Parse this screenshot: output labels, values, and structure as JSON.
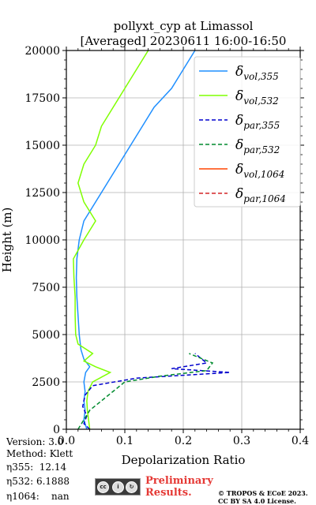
{
  "footer": {
    "version_line": "Version: 3.0",
    "method_line": "Method: Klett",
    "eta355_label": "η355:",
    "eta355_value": "12.14",
    "eta532_label": "η532:",
    "eta532_value": "6.1888",
    "eta1064_label": "η1064:",
    "eta1064_value": "nan",
    "badge_text": "BY SA",
    "preliminary_line1": "Preliminary",
    "preliminary_line2": "Results.",
    "copyright_line1": "© TROPOS & ECoE 2023.",
    "copyright_line2": "CC BY SA 4.0 License."
  },
  "chart_data": {
    "type": "line",
    "title": "pollyxt_cyp at Limassol",
    "subtitle": "[Averaged] 20230611 16:00-16:50",
    "xlabel": "Depolarization Ratio",
    "ylabel": "Height (m)",
    "xlim": [
      0.0,
      0.4
    ],
    "ylim": [
      0,
      20000
    ],
    "xticks": [
      "0.0",
      "0.1",
      "0.2",
      "0.3",
      "0.4"
    ],
    "yticks": [
      "0",
      "2500",
      "5000",
      "7500",
      "10000",
      "12500",
      "15000",
      "17500",
      "20000"
    ],
    "grid": true,
    "legend_position": "top-right",
    "series": [
      {
        "name": "δvol,355",
        "color": "#1f8fff",
        "dash": "solid",
        "points": [
          [
            0.035,
            0
          ],
          [
            0.03,
            500
          ],
          [
            0.032,
            1000
          ],
          [
            0.03,
            1500
          ],
          [
            0.032,
            2000
          ],
          [
            0.03,
            2500
          ],
          [
            0.033,
            3000
          ],
          [
            0.04,
            3300
          ],
          [
            0.03,
            3700
          ],
          [
            0.025,
            4200
          ],
          [
            0.022,
            5000
          ],
          [
            0.02,
            6000
          ],
          [
            0.018,
            7000
          ],
          [
            0.017,
            8000
          ],
          [
            0.018,
            9000
          ],
          [
            0.022,
            10000
          ],
          [
            0.03,
            11000
          ],
          [
            0.05,
            12000
          ],
          [
            0.07,
            13000
          ],
          [
            0.09,
            14000
          ],
          [
            0.11,
            15000
          ],
          [
            0.13,
            16000
          ],
          [
            0.15,
            17000
          ],
          [
            0.18,
            18000
          ],
          [
            0.2,
            19000
          ],
          [
            0.22,
            20000
          ]
        ]
      },
      {
        "name": "δvol,532",
        "color": "#7fff00",
        "dash": "solid",
        "points": [
          [
            0.04,
            0
          ],
          [
            0.038,
            500
          ],
          [
            0.036,
            1000
          ],
          [
            0.035,
            1500
          ],
          [
            0.037,
            2000
          ],
          [
            0.045,
            2500
          ],
          [
            0.075,
            3000
          ],
          [
            0.05,
            3300
          ],
          [
            0.03,
            3600
          ],
          [
            0.045,
            4000
          ],
          [
            0.02,
            4500
          ],
          [
            0.016,
            5000
          ],
          [
            0.015,
            6000
          ],
          [
            0.015,
            7000
          ],
          [
            0.013,
            8000
          ],
          [
            0.012,
            9000
          ],
          [
            0.03,
            10000
          ],
          [
            0.05,
            11000
          ],
          [
            0.03,
            12000
          ],
          [
            0.02,
            13000
          ],
          [
            0.03,
            14000
          ],
          [
            0.05,
            15000
          ],
          [
            0.06,
            16000
          ],
          [
            0.08,
            17000
          ],
          [
            0.1,
            18000
          ],
          [
            0.12,
            19000
          ],
          [
            0.14,
            20000
          ]
        ]
      },
      {
        "name": "δpar,355",
        "color": "#0000cd",
        "dash": "dashed",
        "points": [
          [
            0.04,
            0
          ],
          [
            0.03,
            300
          ],
          [
            0.035,
            700
          ],
          [
            0.028,
            1200
          ],
          [
            0.032,
            1800
          ],
          [
            0.045,
            2300
          ],
          [
            0.12,
            2700
          ],
          [
            0.28,
            3000
          ],
          [
            0.18,
            3200
          ],
          [
            0.24,
            3500
          ],
          [
            0.22,
            4000
          ]
        ]
      },
      {
        "name": "δpar,532",
        "color": "#008b2e",
        "dash": "dashed",
        "points": [
          [
            0.02,
            0
          ],
          [
            0.03,
            500
          ],
          [
            0.04,
            1000
          ],
          [
            0.06,
            1500
          ],
          [
            0.08,
            2000
          ],
          [
            0.1,
            2500
          ],
          [
            0.16,
            2800
          ],
          [
            0.24,
            3100
          ],
          [
            0.25,
            3500
          ],
          [
            0.21,
            4000
          ]
        ]
      },
      {
        "name": "δvol,1064",
        "color": "#ff4500",
        "dash": "solid",
        "points": []
      },
      {
        "name": "δpar,1064",
        "color": "#d62728",
        "dash": "dashed",
        "points": []
      }
    ]
  }
}
